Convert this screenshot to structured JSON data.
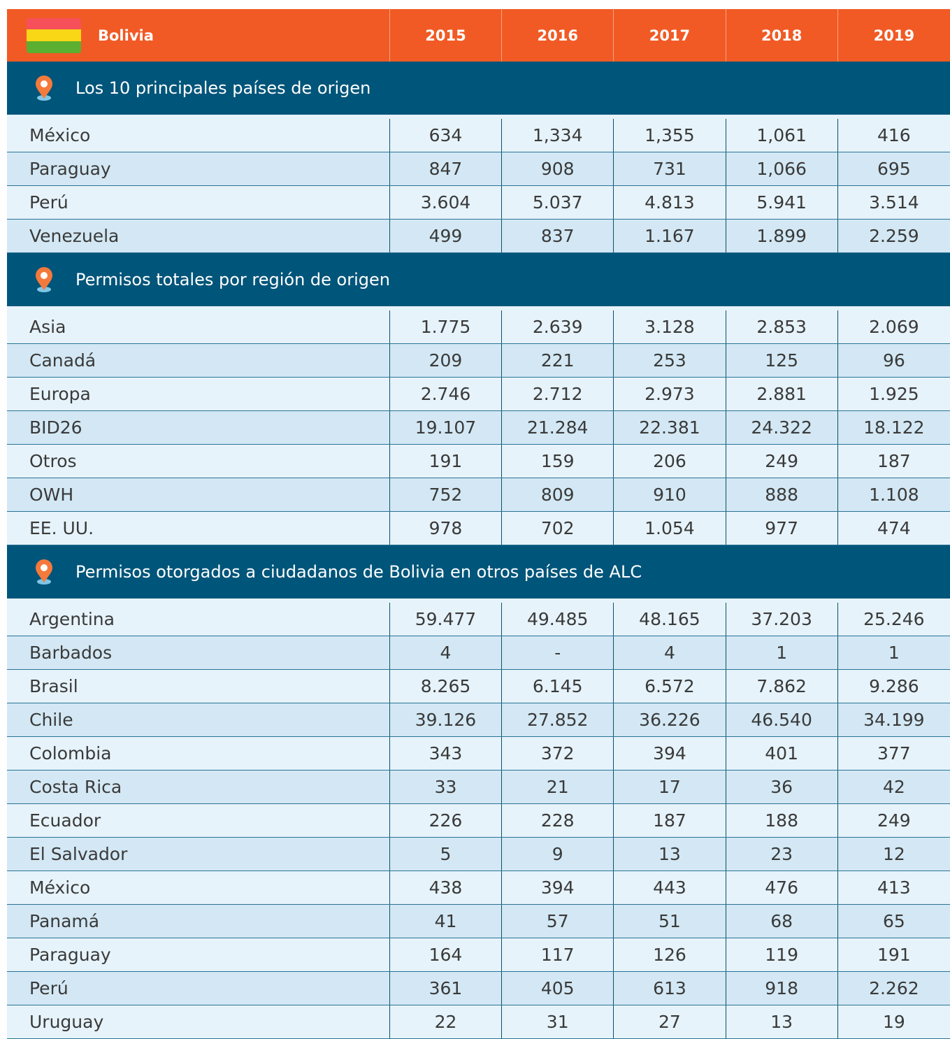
{
  "header": {
    "title": "Bolivia",
    "years": [
      "2015",
      "2016",
      "2017",
      "2018",
      "2019"
    ]
  },
  "sections": [
    {
      "title": "Los 10 principales países de origen",
      "rows": [
        [
          "México",
          "634",
          "1,334",
          "1,355",
          "1,061",
          "416"
        ],
        [
          "Paraguay",
          "847",
          "908",
          "731",
          "1,066",
          "695"
        ],
        [
          "Perú",
          "3.604",
          "5.037",
          "4.813",
          "5.941",
          "3.514"
        ],
        [
          "Venezuela",
          "499",
          "837",
          "1.167",
          "1.899",
          "2.259"
        ]
      ]
    },
    {
      "title": "Permisos totales por región de origen",
      "rows": [
        [
          "Asia",
          "1.775",
          "2.639",
          "3.128",
          "2.853",
          "2.069"
        ],
        [
          "Canadá",
          "209",
          "221",
          "253",
          "125",
          "96"
        ],
        [
          "Europa",
          "2.746",
          "2.712",
          "2.973",
          "2.881",
          "1.925"
        ],
        [
          "BID26",
          "19.107",
          "21.284",
          "22.381",
          "24.322",
          "18.122"
        ],
        [
          "Otros",
          "191",
          "159",
          "206",
          "249",
          "187"
        ],
        [
          "OWH",
          "752",
          "809",
          "910",
          "888",
          "1.108"
        ],
        [
          "EE. UU.",
          "978",
          "702",
          "1.054",
          "977",
          "474"
        ]
      ]
    },
    {
      "title": "Permisos otorgados a ciudadanos de Bolivia en otros países de ALC",
      "rows": [
        [
          "Argentina",
          "59.477",
          "49.485",
          "48.165",
          "37.203",
          "25.246"
        ],
        [
          "Barbados",
          "4",
          "-",
          "4",
          "1",
          "1"
        ],
        [
          "Brasil",
          "8.265",
          "6.145",
          "6.572",
          "7.862",
          "9.286"
        ],
        [
          "Chile",
          "39.126",
          "27.852",
          "36.226",
          "46.540",
          "34.199"
        ],
        [
          "Colombia",
          "343",
          "372",
          "394",
          "401",
          "377"
        ],
        [
          "Costa Rica",
          "33",
          "21",
          "17",
          "36",
          "42"
        ],
        [
          "Ecuador",
          "226",
          "228",
          "187",
          "188",
          "249"
        ],
        [
          "El Salvador",
          "5",
          "9",
          "13",
          "23",
          "12"
        ],
        [
          "México",
          "438",
          "394",
          "443",
          "476",
          "413"
        ],
        [
          "Panamá",
          "41",
          "57",
          "51",
          "68",
          "65"
        ],
        [
          "Paraguay",
          "164",
          "117",
          "126",
          "119",
          "191"
        ],
        [
          "Perú",
          "361",
          "405",
          "613",
          "918",
          "2.262"
        ],
        [
          "Uruguay",
          "22",
          "31",
          "27",
          "13",
          "19"
        ]
      ]
    }
  ]
}
